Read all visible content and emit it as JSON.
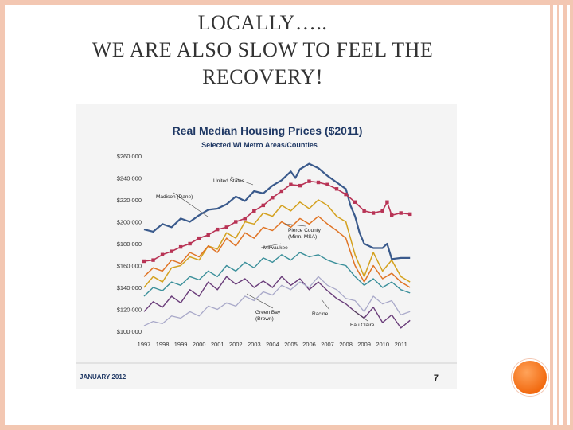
{
  "slide": {
    "title_line1": "LOCALLY…..",
    "title_line2": "WE ARE ALSO SLOW TO FEEL THE",
    "title_line3": "RECOVERY!"
  },
  "chart_data": {
    "type": "line",
    "title": "Real Median Housing Prices ($2011)",
    "subtitle": "Selected WI Metro Areas/Counties",
    "footer_left": "JANUARY 2012",
    "footer_right": "7",
    "x_labels": [
      "1997",
      "1998",
      "1999",
      "2000",
      "2001",
      "2002",
      "2003",
      "2004",
      "2005",
      "2006",
      "2007",
      "2008",
      "2009",
      "2010",
      "2011"
    ],
    "x_range": [
      1997,
      2011.75
    ],
    "y_ticks": [
      "$260,000",
      "$240,000",
      "$220,000",
      "$200,000",
      "$180,000",
      "$160,000",
      "$140,000",
      "$120,000",
      "$100,000"
    ],
    "y_range": [
      100000,
      260000
    ],
    "grid": false,
    "series": [
      {
        "name": "United States",
        "color": "#3a5a8c",
        "width": 2.2,
        "x": [
          1997,
          1997.5,
          1998,
          1998.5,
          1999,
          1999.5,
          2000,
          2000.5,
          2001,
          2001.5,
          2002,
          2002.5,
          2003,
          2003.5,
          2004,
          2004.5,
          2005,
          2005.25,
          2005.5,
          2006,
          2006.5,
          2007,
          2007.5,
          2008,
          2008.25,
          2008.5,
          2008.75,
          2009,
          2009.5,
          2010,
          2010.25,
          2010.5,
          2011,
          2011.5
        ],
        "y": [
          193000,
          191000,
          198000,
          195000,
          203000,
          200000,
          206000,
          211000,
          212000,
          216000,
          223000,
          219000,
          228000,
          226000,
          233000,
          238000,
          246000,
          240000,
          248000,
          253000,
          249000,
          242000,
          236000,
          230000,
          215000,
          205000,
          190000,
          180000,
          176000,
          176000,
          180000,
          166000,
          167000,
          167000
        ]
      },
      {
        "name": "Madison (Dane)",
        "color": "#b83355",
        "width": 1.6,
        "markers": true,
        "x": [
          1997,
          1997.5,
          1998,
          1998.5,
          1999,
          1999.5,
          2000,
          2000.5,
          2001,
          2001.5,
          2002,
          2002.5,
          2003,
          2003.5,
          2004,
          2004.5,
          2005,
          2005.5,
          2006,
          2006.5,
          2007,
          2007.5,
          2008,
          2008.5,
          2009,
          2009.5,
          2010,
          2010.25,
          2010.5,
          2011,
          2011.5
        ],
        "y": [
          164000,
          165000,
          170000,
          173000,
          177000,
          180000,
          185000,
          188000,
          193000,
          195000,
          200000,
          203000,
          210000,
          215000,
          222000,
          228000,
          234000,
          233000,
          237000,
          236000,
          234000,
          230000,
          225000,
          218000,
          210000,
          208000,
          210000,
          218000,
          206000,
          208000,
          207000
        ]
      },
      {
        "name": "Pierce County (Minn. MSA)",
        "color": "#d4a11e",
        "width": 1.5,
        "x": [
          1997,
          1997.5,
          1998,
          1998.5,
          1999,
          1999.5,
          2000,
          2000.5,
          2001,
          2001.5,
          2002,
          2002.5,
          2003,
          2003.5,
          2004,
          2004.5,
          2005,
          2005.5,
          2006,
          2006.5,
          2007,
          2007.5,
          2008,
          2008.5,
          2009,
          2009.5,
          2010,
          2010.5,
          2011,
          2011.5
        ],
        "y": [
          140000,
          150000,
          145000,
          158000,
          160000,
          168000,
          165000,
          178000,
          175000,
          190000,
          185000,
          200000,
          198000,
          208000,
          205000,
          215000,
          210000,
          218000,
          212000,
          220000,
          215000,
          205000,
          200000,
          170000,
          150000,
          172000,
          155000,
          165000,
          150000,
          145000
        ]
      },
      {
        "name": "Milwaukee",
        "color": "#e07425",
        "width": 1.5,
        "x": [
          1997,
          1997.5,
          1998,
          1998.5,
          1999,
          1999.5,
          2000,
          2000.5,
          2001,
          2001.5,
          2002,
          2002.5,
          2003,
          2003.5,
          2004,
          2004.5,
          2005,
          2005.5,
          2006,
          2006.5,
          2007,
          2007.5,
          2008,
          2008.5,
          2009,
          2009.5,
          2010,
          2010.5,
          2011,
          2011.5
        ],
        "y": [
          150000,
          158000,
          155000,
          165000,
          162000,
          172000,
          168000,
          178000,
          172000,
          185000,
          178000,
          190000,
          185000,
          195000,
          192000,
          200000,
          195000,
          203000,
          198000,
          205000,
          198000,
          192000,
          185000,
          160000,
          145000,
          160000,
          148000,
          153000,
          145000,
          140000
        ]
      },
      {
        "name": "Green Bay (Brown)",
        "color": "#3a8f9a",
        "width": 1.4,
        "x": [
          1997,
          1997.5,
          1998,
          1998.5,
          1999,
          1999.5,
          2000,
          2000.5,
          2001,
          2001.5,
          2002,
          2002.5,
          2003,
          2003.5,
          2004,
          2004.5,
          2005,
          2005.5,
          2006,
          2006.5,
          2007,
          2007.5,
          2008,
          2008.5,
          2009,
          2009.5,
          2010,
          2010.5,
          2011,
          2011.5
        ],
        "y": [
          132000,
          140000,
          137000,
          145000,
          142000,
          150000,
          147000,
          155000,
          150000,
          160000,
          155000,
          163000,
          158000,
          167000,
          163000,
          170000,
          165000,
          172000,
          168000,
          170000,
          165000,
          162000,
          160000,
          150000,
          142000,
          148000,
          140000,
          145000,
          138000,
          135000
        ]
      },
      {
        "name": "Racine",
        "color": "#6a3d7a",
        "width": 1.4,
        "x": [
          1997,
          1997.5,
          1998,
          1998.5,
          1999,
          1999.5,
          2000,
          2000.5,
          2001,
          2001.5,
          2002,
          2002.5,
          2003,
          2003.5,
          2004,
          2004.5,
          2005,
          2005.5,
          2006,
          2006.5,
          2007,
          2007.5,
          2008,
          2008.5,
          2009,
          2009.5,
          2010,
          2010.5,
          2011,
          2011.5
        ],
        "y": [
          118000,
          127000,
          122000,
          132000,
          126000,
          138000,
          132000,
          145000,
          138000,
          150000,
          143000,
          148000,
          140000,
          146000,
          140000,
          150000,
          142000,
          148000,
          138000,
          145000,
          137000,
          130000,
          125000,
          118000,
          112000,
          122000,
          108000,
          115000,
          103000,
          110000
        ]
      },
      {
        "name": "Eau Claire",
        "color": "#a9a9c9",
        "width": 1.3,
        "x": [
          1997,
          1997.5,
          1998,
          1998.5,
          1999,
          1999.5,
          2000,
          2000.5,
          2001,
          2001.5,
          2002,
          2002.5,
          2003,
          2003.5,
          2004,
          2004.5,
          2005,
          2005.5,
          2006,
          2006.5,
          2007,
          2007.5,
          2008,
          2008.5,
          2009,
          2009.5,
          2010,
          2010.5,
          2011,
          2011.5
        ],
        "y": [
          105000,
          109000,
          107000,
          114000,
          112000,
          118000,
          114000,
          123000,
          120000,
          126000,
          123000,
          132000,
          128000,
          136000,
          133000,
          142000,
          138000,
          145000,
          140000,
          150000,
          142000,
          138000,
          130000,
          128000,
          118000,
          132000,
          125000,
          128000,
          115000,
          118000
        ]
      }
    ],
    "annotations": [
      {
        "key": "us",
        "lines": [
          "United States"
        ]
      },
      {
        "key": "madison",
        "lines": [
          "Madison (Dane)"
        ]
      },
      {
        "key": "pierce",
        "lines": [
          "Pierce County",
          "(Minn. MSA)"
        ]
      },
      {
        "key": "milwaukee",
        "lines": [
          "Milwaukee"
        ]
      },
      {
        "key": "greenbay",
        "lines": [
          "Green Bay",
          "(Brown)"
        ]
      },
      {
        "key": "racine",
        "lines": [
          "Racine"
        ]
      },
      {
        "key": "eauclaire",
        "lines": [
          "Eau Claire"
        ]
      }
    ],
    "colors": {
      "panel_bg": "#f4f4f4",
      "title": "#1f3864",
      "axis_text": "#333333"
    }
  }
}
